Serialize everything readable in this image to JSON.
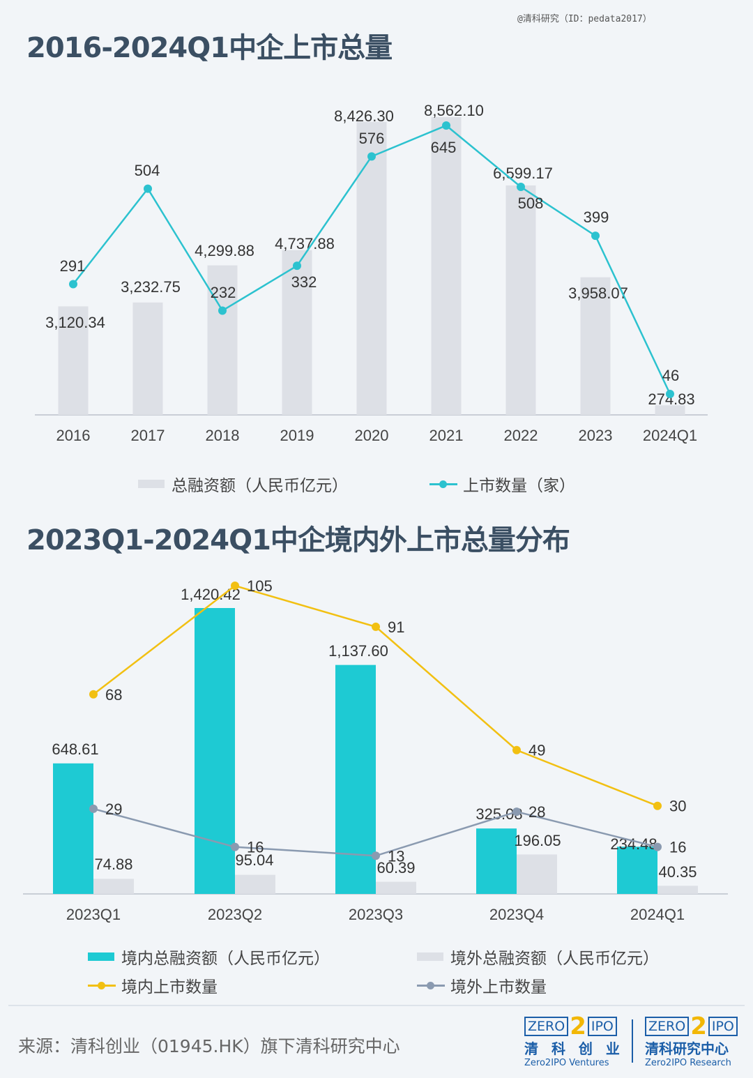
{
  "watermark": "@清科研究（ID：pedata2017）",
  "source": "来源：清科创业（01945.HK）旗下清科研究中心",
  "logos": [
    {
      "word_left": "ZERO",
      "two": "2",
      "word_right": "IPO",
      "cn": "清 科 创 业",
      "en": "Zero2IPO Ventures"
    },
    {
      "word_left": "ZERO",
      "two": "2",
      "word_right": "IPO",
      "cn": "清科研究中心",
      "en": "Zero2IPO Research"
    }
  ],
  "chart_data": [
    {
      "type": "bar",
      "title": "2016-2024Q1中企上市总量",
      "categories": [
        "2016",
        "2017",
        "2018",
        "2019",
        "2020",
        "2021",
        "2022",
        "2023",
        "2024Q1"
      ],
      "series": [
        {
          "name": "总融资额（人民币亿元）",
          "kind": "bar",
          "color": "#dde0e6",
          "values": [
            3120.34,
            3232.75,
            4299.88,
            4737.88,
            8426.3,
            8562.1,
            6599.17,
            3958.07,
            274.83
          ],
          "labels": [
            "3,120.34",
            "3,232.75",
            "4,299.88",
            "4,737.88",
            "8,426.30",
            "8,562.10",
            "6,599.17",
            "3,958.07",
            "274.83"
          ]
        },
        {
          "name": "上市数量（家）",
          "kind": "line",
          "color": "#2cc2cf",
          "values": [
            291,
            504,
            232,
            332,
            576,
            645,
            508,
            399,
            46
          ],
          "labels": [
            "291",
            "504",
            "232",
            "332",
            "576",
            "645",
            "508",
            "399",
            "46"
          ]
        }
      ],
      "legend_position": "bottom",
      "grid": false
    },
    {
      "type": "bar",
      "title": "2023Q1-2024Q1中企境内外上市总量分布",
      "categories": [
        "2023Q1",
        "2023Q2",
        "2023Q3",
        "2023Q4",
        "2024Q1"
      ],
      "series": [
        {
          "name": "境内总融资额（人民币亿元）",
          "kind": "bar",
          "color": "#1ecad3",
          "values": [
            648.61,
            1420.42,
            1137.6,
            325.08,
            234.48
          ],
          "labels": [
            "648.61",
            "1,420.42",
            "1,137.60",
            "325.08",
            "234.48"
          ]
        },
        {
          "name": "境外总融资额（人民币亿元）",
          "kind": "bar",
          "color": "#dde0e6",
          "values": [
            74.88,
            95.04,
            60.39,
            196.05,
            40.35
          ],
          "labels": [
            "74.88",
            "95.04",
            "60.39",
            "196.05",
            "40.35"
          ]
        },
        {
          "name": "境内上市数量",
          "kind": "line",
          "color": "#f2c012",
          "values": [
            68,
            105,
            91,
            49,
            30
          ],
          "labels": [
            "68",
            "105",
            "91",
            "49",
            "30"
          ]
        },
        {
          "name": "境外上市数量",
          "kind": "line",
          "color": "#8a9ab0",
          "values": [
            29,
            16,
            13,
            28,
            16
          ],
          "labels": [
            "29",
            "16",
            "13",
            "28",
            "16"
          ]
        }
      ],
      "legend_position": "bottom",
      "grid": false
    }
  ]
}
